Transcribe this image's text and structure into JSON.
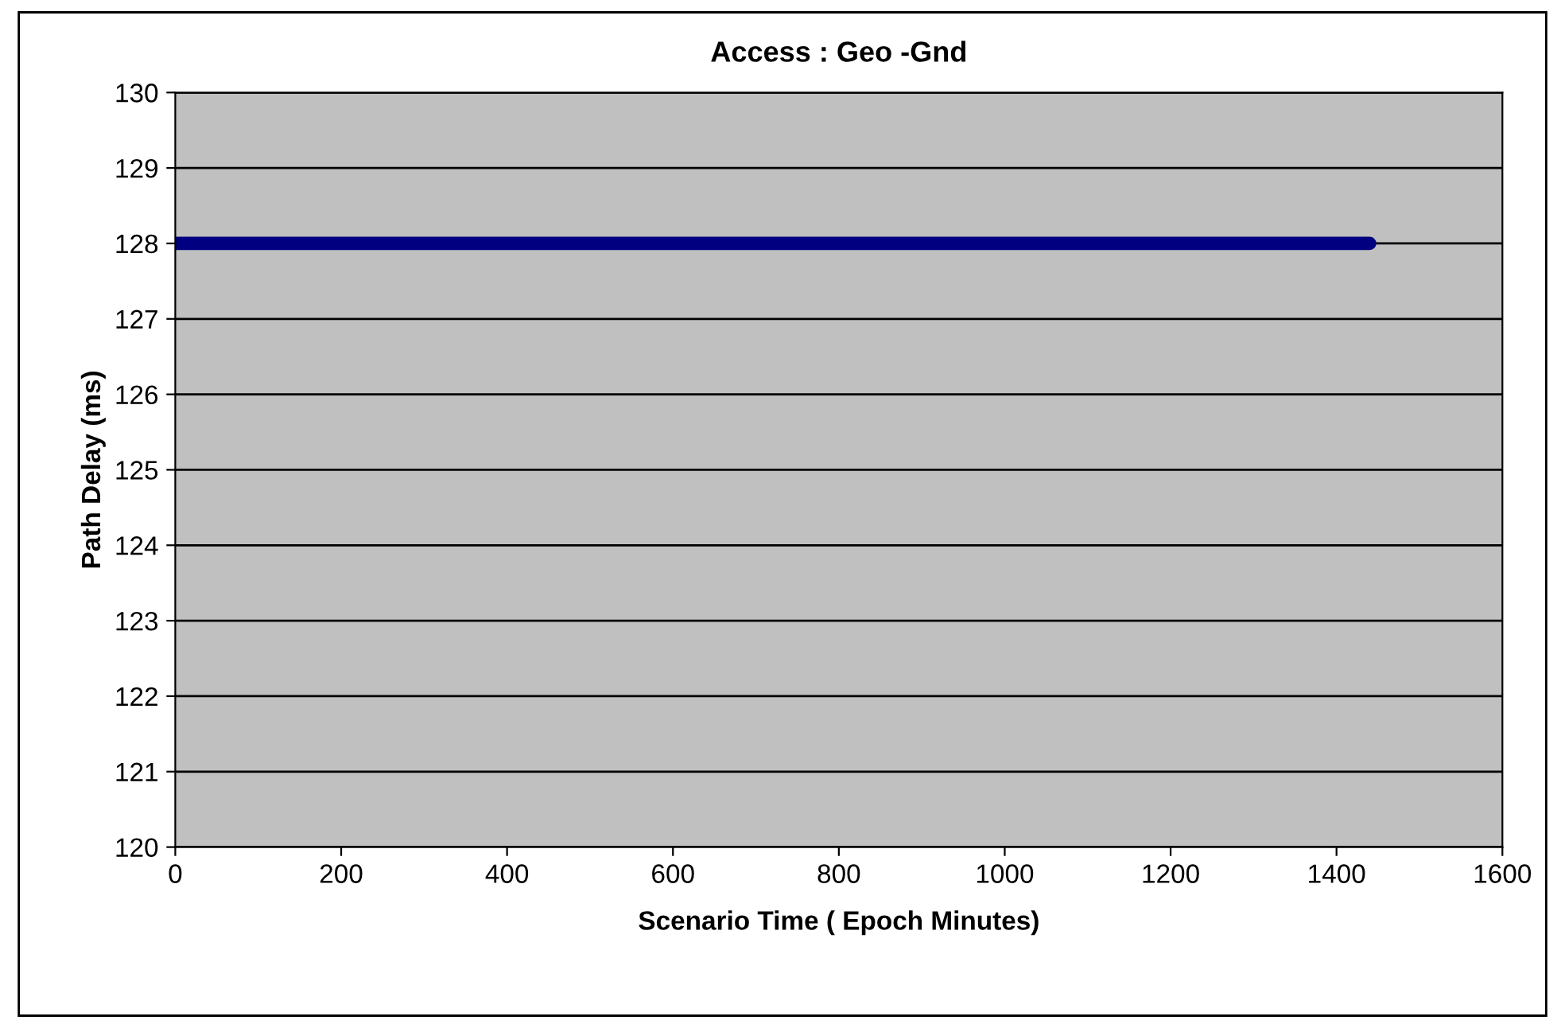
{
  "chart_data": {
    "type": "line",
    "title": "Access : Geo -Gnd",
    "xlabel": "Scenario Time ( Epoch Minutes)",
    "ylabel": "Path Delay (ms)",
    "x": [
      0,
      1440
    ],
    "series": [
      {
        "color": "#000080",
        "values": [
          128,
          128
        ]
      }
    ],
    "xlim": [
      0,
      1600
    ],
    "xticks": [
      0,
      200,
      400,
      600,
      800,
      1000,
      1200,
      1400,
      1600
    ],
    "ylim": [
      120,
      130
    ],
    "yticks": [
      120,
      121,
      122,
      123,
      124,
      125,
      126,
      127,
      128,
      129,
      130
    ],
    "grid": "y",
    "marker": "none",
    "line_style": "solid"
  }
}
